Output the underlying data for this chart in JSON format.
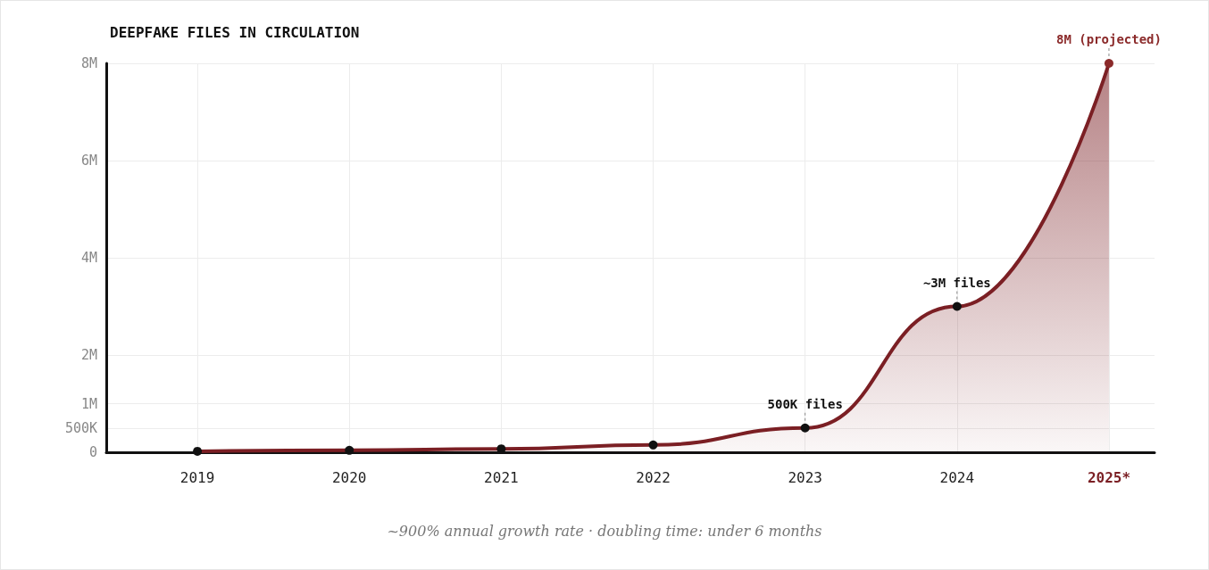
{
  "chart_data": {
    "type": "area",
    "title": "DEEPFAKE FILES IN CIRCULATION",
    "x": [
      2019,
      2020,
      2021,
      2022,
      2023,
      2024,
      2025
    ],
    "series": [
      {
        "color": "#7b1f24",
        "values": [
          20000,
          40000,
          70000,
          150000,
          500000,
          3000000,
          8000000
        ],
        "colors": [
          "#111111",
          "#111111",
          "#111111",
          "#111111",
          "#111111",
          "#111111",
          "#8b2a2a"
        ]
      }
    ],
    "xlim": [
      2018.4,
      2025.3
    ],
    "xticks": [
      2019,
      2020,
      2021,
      2022,
      2023,
      2024,
      {
        "value": 2025,
        "label": "2025*"
      }
    ],
    "ylim": [
      0,
      8000000
    ],
    "yticks": [
      0,
      {
        "value": 500000,
        "label": "500K"
      },
      {
        "value": 1000000,
        "label": "1M"
      },
      {
        "value": 2000000,
        "label": "2M"
      },
      {
        "value": 4000000,
        "label": "4M"
      },
      {
        "value": 6000000,
        "label": "6M"
      },
      {
        "value": 8000000,
        "label": "8M"
      }
    ],
    "grid": true,
    "marker": "circle",
    "annotations": [
      {
        "text": "8M (projected)",
        "x": 2025,
        "y": 8000000
      },
      {
        "text": "~3M files",
        "x": 2024,
        "y": 3000000
      },
      {
        "text": "500K files",
        "x": 2023,
        "y": 500000
      },
      "~900% annual growth rate · doubling time: under 6 months"
    ]
  }
}
